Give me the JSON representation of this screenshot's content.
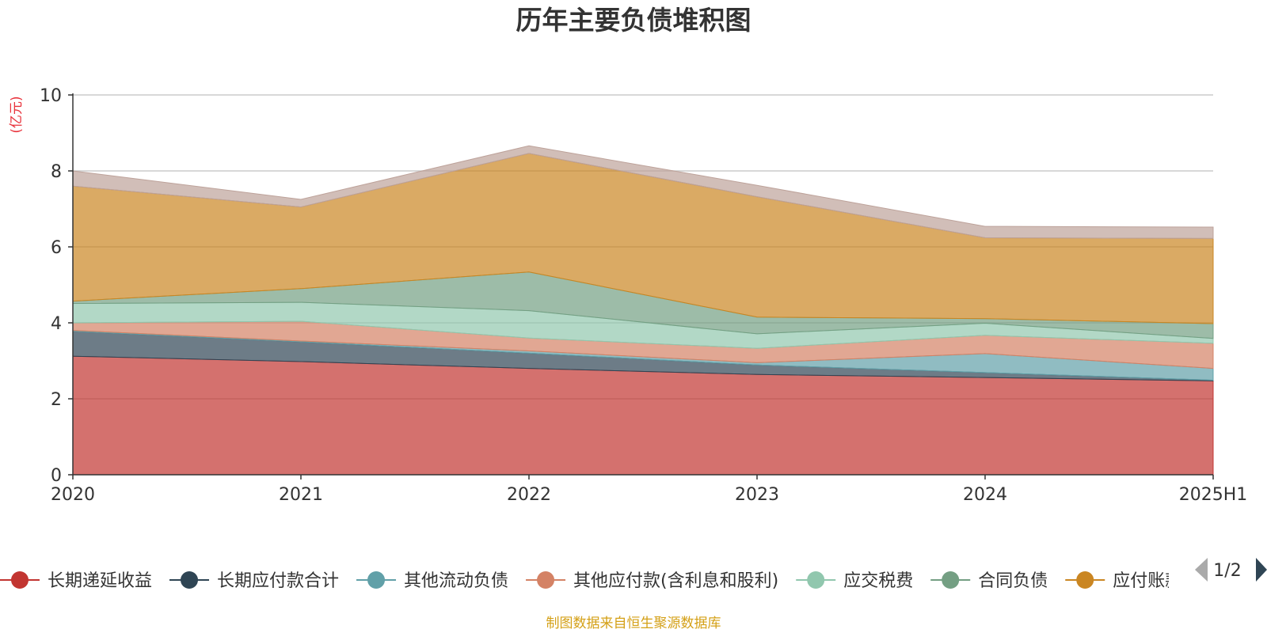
{
  "title": "历年主要负债堆积图",
  "unit_label": "(亿元)",
  "source_text": "制图数据来自恒生聚源数据库",
  "legend": {
    "page_text": "1/2",
    "prev_icon": "triangle-left-icon",
    "next_icon": "triangle-right-icon",
    "visible_count": 7
  },
  "chart_data": {
    "type": "area",
    "stacked": true,
    "title": "历年主要负债堆积图",
    "ylabel": "(亿元)",
    "ylim": [
      0,
      10
    ],
    "yticks": [
      "0",
      "2",
      "4",
      "6",
      "8",
      "10"
    ],
    "x": [
      "2020",
      "2021",
      "2022",
      "2023",
      "2024",
      "2025H1"
    ],
    "grid": true,
    "legend_position": "bottom",
    "series": [
      {
        "name": "长期递延收益",
        "color": "#c23531",
        "values": [
          3.12,
          2.98,
          2.8,
          2.64,
          2.56,
          2.47
        ]
      },
      {
        "name": "长期应付款合计",
        "color": "#2f4554",
        "values": [
          0.66,
          0.52,
          0.4,
          0.25,
          0.13,
          0.02
        ]
      },
      {
        "name": "其他流动负债",
        "color": "#61a0a8",
        "values": [
          0.02,
          0.02,
          0.06,
          0.06,
          0.5,
          0.31
        ]
      },
      {
        "name": "其他应付款(含利息和股利)",
        "color": "#d48265",
        "values": [
          0.2,
          0.52,
          0.34,
          0.38,
          0.48,
          0.66
        ]
      },
      {
        "name": "应交税费",
        "color": "#91c7ae",
        "values": [
          0.51,
          0.5,
          0.72,
          0.38,
          0.32,
          0.13
        ]
      },
      {
        "name": "合同负债",
        "color": "#749f83",
        "values": [
          0.06,
          0.36,
          1.02,
          0.44,
          0.12,
          0.39
        ]
      },
      {
        "name": "应付账款",
        "color": "#ca8622",
        "values": [
          3.03,
          2.15,
          3.12,
          3.17,
          2.13,
          2.24
        ]
      },
      {
        "name": "",
        "color": "#bda29a",
        "values": [
          0.4,
          0.2,
          0.2,
          0.3,
          0.3,
          0.3
        ]
      }
    ]
  }
}
